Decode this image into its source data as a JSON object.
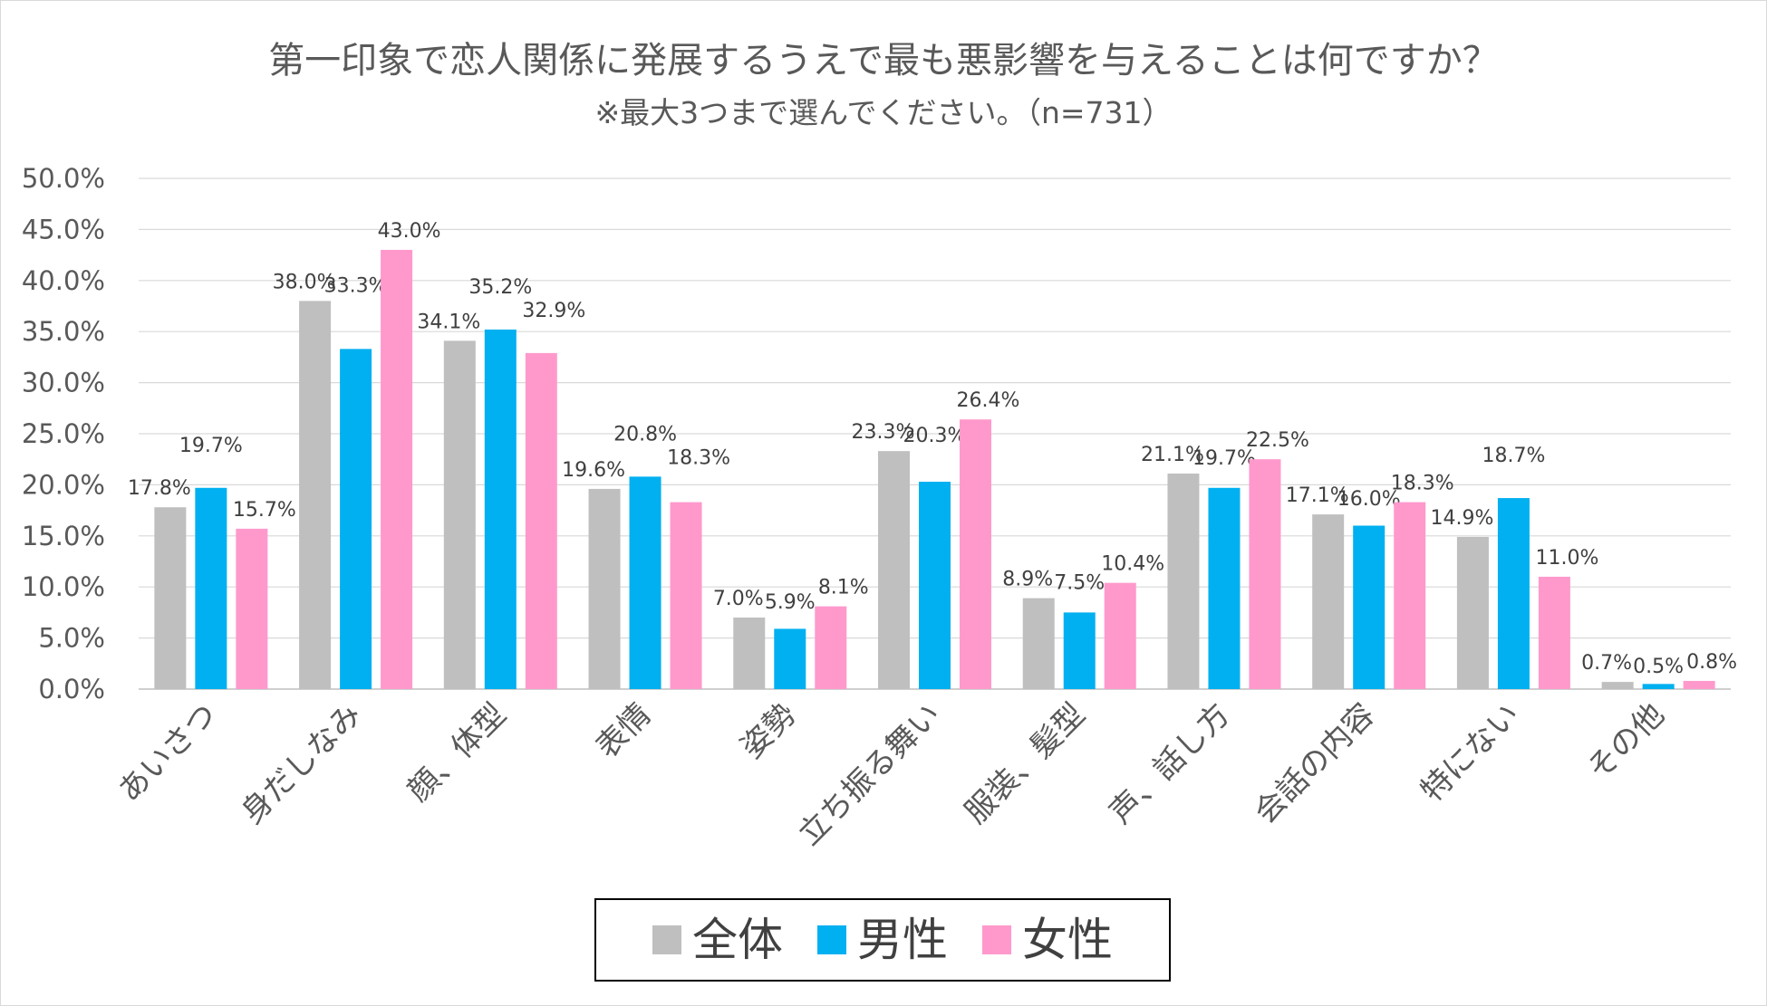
{
  "chart_data": {
    "type": "bar",
    "title": "第一印象で恋人関係に発展するうえで最も悪影響を与えることは何ですか？",
    "subtitle": "※最大3つまで選んでください。（n=731）",
    "categories": [
      "あいさつ",
      "身だしなみ",
      "顔、体型",
      "表情",
      "姿勢",
      "立ち振る舞い",
      "服装、髪型",
      "声、話し方",
      "会話の内容",
      "特にない",
      "その他"
    ],
    "series": [
      {
        "name": "全体",
        "color": "#bfbfbf",
        "values": [
          17.8,
          38.0,
          34.1,
          19.6,
          7.0,
          23.3,
          8.9,
          21.1,
          17.1,
          14.9,
          0.7
        ]
      },
      {
        "name": "男性",
        "color": "#00b0f0",
        "values": [
          19.7,
          33.3,
          35.2,
          20.8,
          5.9,
          20.3,
          7.5,
          19.7,
          16.0,
          18.7,
          0.5
        ]
      },
      {
        "name": "女性",
        "color": "#ff99cc",
        "values": [
          15.7,
          43.0,
          32.9,
          18.3,
          8.1,
          26.4,
          10.4,
          22.5,
          18.3,
          11.0,
          0.8
        ]
      }
    ],
    "ylim": [
      0,
      50
    ],
    "ytick_labels": [
      "0.0%",
      "5.0%",
      "10.0%",
      "15.0%",
      "20.0%",
      "25.0%",
      "30.0%",
      "35.0%",
      "40.0%",
      "45.0%",
      "50.0%"
    ],
    "value_labels": [
      [
        "17.8%",
        "38.0%",
        "34.1%",
        "19.6%",
        "7.0%",
        "23.3%",
        "8.9%",
        "21.1%",
        "17.1%",
        "14.9%",
        "0.7%"
      ],
      [
        "19.7%",
        "33.3%",
        "35.2%",
        "20.8%",
        "5.9%",
        "20.3%",
        "7.5%",
        "19.7%",
        "16.0%",
        "18.7%",
        "0.5%"
      ],
      [
        "15.7%",
        "43.0%",
        "32.9%",
        "18.3%",
        "8.1%",
        "26.4%",
        "10.4%",
        "22.5%",
        "18.3%",
        "11.0%",
        "0.8%"
      ]
    ],
    "grid": true,
    "legend_position": "bottom-center"
  }
}
